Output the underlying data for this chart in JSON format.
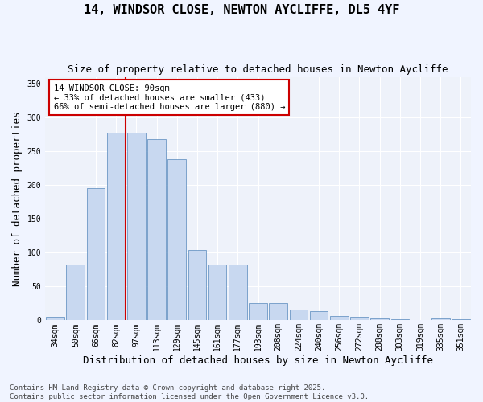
{
  "title_line1": "14, WINDSOR CLOSE, NEWTON AYCLIFFE, DL5 4YF",
  "title_line2": "Size of property relative to detached houses in Newton Aycliffe",
  "xlabel": "Distribution of detached houses by size in Newton Aycliffe",
  "ylabel": "Number of detached properties",
  "bar_color": "#c8d8f0",
  "bar_edge_color": "#5588bb",
  "background_color": "#eef2fa",
  "grid_color": "#ffffff",
  "annotation_text": "14 WINDSOR CLOSE: 90sqm\n← 33% of detached houses are smaller (433)\n66% of semi-detached houses are larger (880) →",
  "vline_index": 3,
  "vline_color": "#cc0000",
  "categories": [
    "34sqm",
    "50sqm",
    "66sqm",
    "82sqm",
    "97sqm",
    "113sqm",
    "129sqm",
    "145sqm",
    "161sqm",
    "177sqm",
    "193sqm",
    "208sqm",
    "224sqm",
    "240sqm",
    "256sqm",
    "272sqm",
    "288sqm",
    "303sqm",
    "319sqm",
    "335sqm",
    "351sqm"
  ],
  "values": [
    5,
    83,
    196,
    278,
    278,
    268,
    238,
    104,
    83,
    83,
    26,
    26,
    16,
    13,
    7,
    5,
    3,
    2,
    1,
    3,
    2
  ],
  "ylim": [
    0,
    360
  ],
  "yticks": [
    0,
    50,
    100,
    150,
    200,
    250,
    300,
    350
  ],
  "footnote": "Contains HM Land Registry data © Crown copyright and database right 2025.\nContains public sector information licensed under the Open Government Licence v3.0.",
  "title_fontsize": 11,
  "subtitle_fontsize": 9,
  "axis_label_fontsize": 9,
  "tick_fontsize": 7,
  "footnote_fontsize": 6.5,
  "annot_fontsize": 7.5
}
